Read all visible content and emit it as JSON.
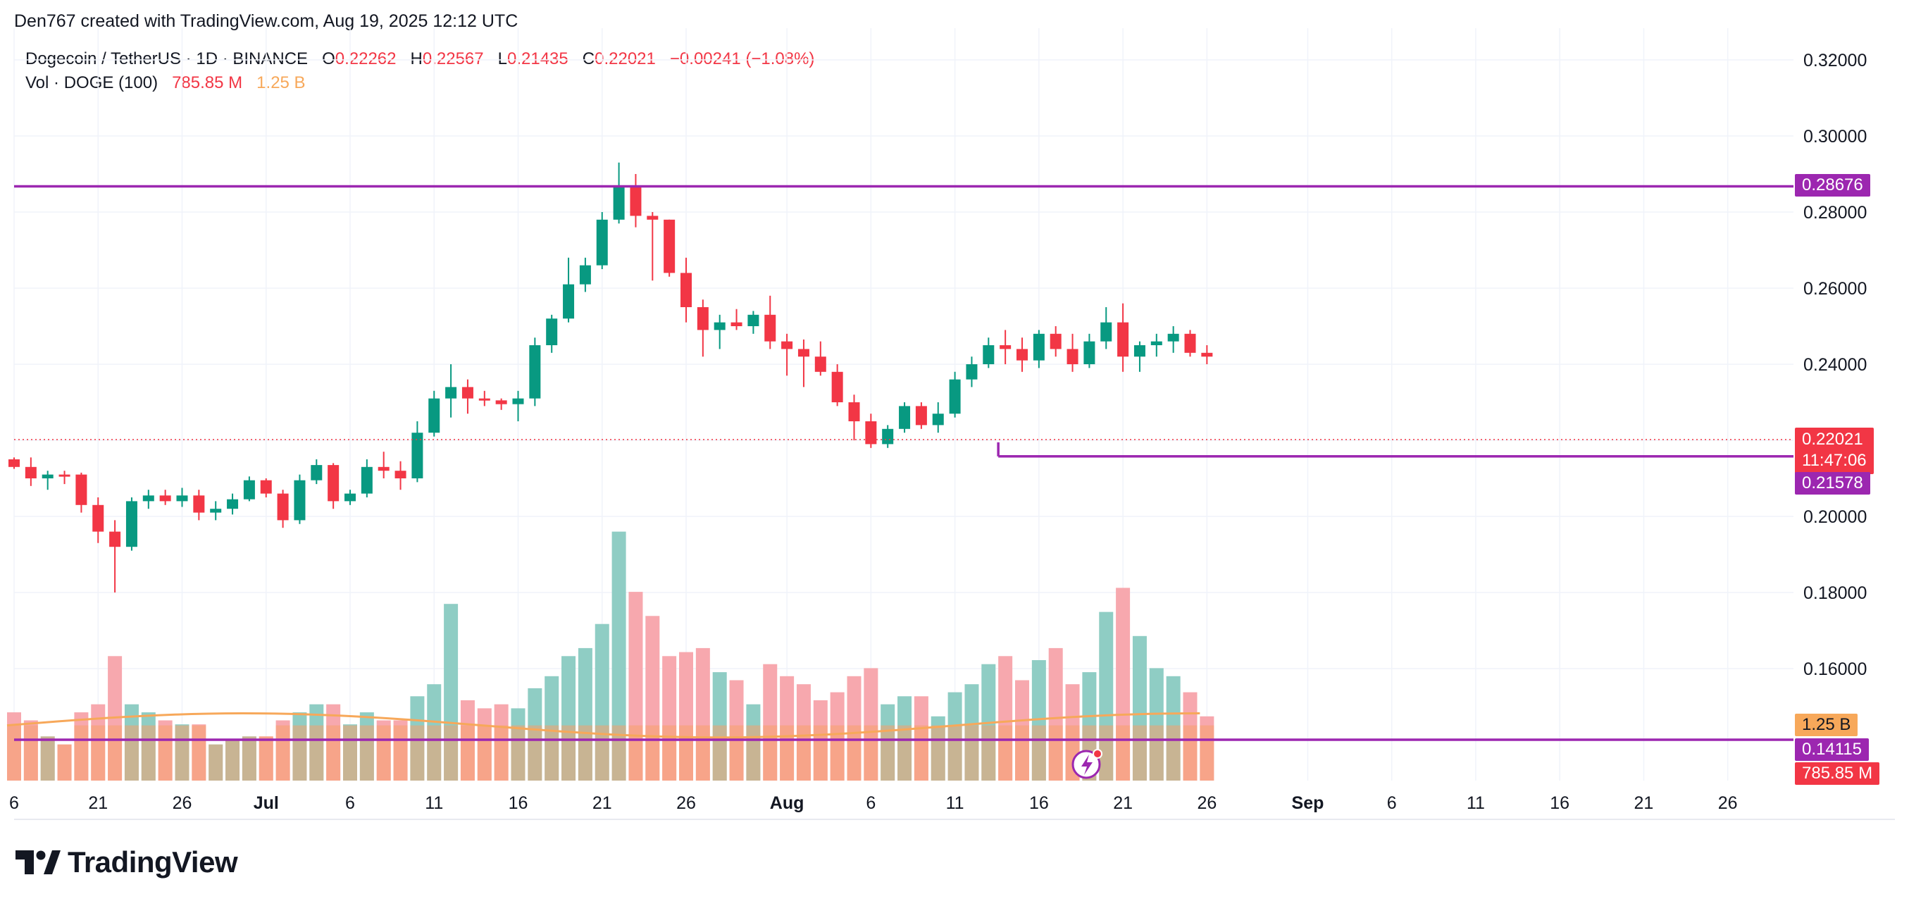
{
  "header": {
    "attribution": "Den767 created with TradingView.com, Aug 19, 2025 12:12 UTC"
  },
  "legend": {
    "symbol": "Dogecoin / TetherUS · 1D · BINANCE",
    "o_label": "O",
    "o_value": "0.22262",
    "h_label": "H",
    "h_value": "0.22567",
    "l_label": "L",
    "l_value": "0.21435",
    "c_label": "C",
    "c_value": "0.22021",
    "change": "−0.00241 (−1.08%)",
    "vol_label": "Vol · DOGE (100)",
    "vol_value": "785.85 M",
    "vol_ma_value": "1.25 B"
  },
  "brand": {
    "name": "TradingView",
    "logo_icon": "tradingview-logo-icon"
  },
  "tags": {
    "resistance": "0.28676",
    "last_price": "0.22021",
    "countdown": "11:47:06",
    "support": "0.21578",
    "vol_ma": "1.25 B",
    "low_line": "0.14115",
    "vol": "785.85 M"
  },
  "colors": {
    "up": "#089981",
    "down": "#f23645",
    "up_vol": "#8fcdc4",
    "down_vol": "#f7a8ae",
    "vol_base": "#f7a06b",
    "line": "#9c27b0",
    "vol_ma": "#f7a85a"
  },
  "chart_data": {
    "type": "candlestick",
    "title": "Dogecoin / TetherUS · 1D · BINANCE",
    "y_ticks": [
      "0.32000",
      "0.30000",
      "0.28000",
      "0.26000",
      "0.24000",
      "0.20000",
      "0.18000",
      "0.16000"
    ],
    "x_ticks": [
      {
        "label": "6",
        "day": 0
      },
      {
        "label": "21",
        "day": 5
      },
      {
        "label": "26",
        "day": 10
      },
      {
        "label": "Jul",
        "day": 15,
        "bold": true
      },
      {
        "label": "6",
        "day": 20
      },
      {
        "label": "11",
        "day": 25
      },
      {
        "label": "16",
        "day": 30
      },
      {
        "label": "21",
        "day": 35
      },
      {
        "label": "26",
        "day": 40
      },
      {
        "label": "Aug",
        "day": 46,
        "bold": true
      },
      {
        "label": "6",
        "day": 51
      },
      {
        "label": "11",
        "day": 56
      },
      {
        "label": "16",
        "day": 61
      },
      {
        "label": "21",
        "day": 66
      },
      {
        "label": "26",
        "day": 71
      },
      {
        "label": "Sep",
        "day": 77,
        "bold": true
      },
      {
        "label": "6",
        "day": 82
      },
      {
        "label": "11",
        "day": 87
      },
      {
        "label": "16",
        "day": 92
      },
      {
        "label": "21",
        "day": 97
      },
      {
        "label": "26",
        "day": 102
      }
    ],
    "horizontal_lines": [
      {
        "name": "resistance",
        "price": 0.28676
      },
      {
        "name": "support",
        "price": 0.21578,
        "from_day": 59
      },
      {
        "name": "volume-line",
        "price": 0.14115
      }
    ],
    "last_price": 0.22021,
    "candles": [
      [
        0.215,
        0.2155,
        0.2125,
        0.213,
        0.85
      ],
      [
        0.213,
        0.2155,
        0.208,
        0.21,
        0.75
      ],
      [
        0.21,
        0.212,
        0.207,
        0.211,
        0.55
      ],
      [
        0.211,
        0.212,
        0.2085,
        0.2105,
        0.45
      ],
      [
        0.211,
        0.2115,
        0.201,
        0.203,
        0.85
      ],
      [
        0.203,
        0.205,
        0.193,
        0.196,
        0.95
      ],
      [
        0.196,
        0.199,
        0.18,
        0.192,
        1.55
      ],
      [
        0.192,
        0.205,
        0.191,
        0.204,
        0.95
      ],
      [
        0.204,
        0.207,
        0.202,
        0.2055,
        0.85
      ],
      [
        0.2055,
        0.207,
        0.203,
        0.204,
        0.75
      ],
      [
        0.204,
        0.2075,
        0.2025,
        0.2055,
        0.7
      ],
      [
        0.2055,
        0.207,
        0.199,
        0.201,
        0.7
      ],
      [
        0.201,
        0.204,
        0.199,
        0.202,
        0.45
      ],
      [
        0.202,
        0.206,
        0.2005,
        0.2045,
        0.5
      ],
      [
        0.2045,
        0.2105,
        0.204,
        0.2095,
        0.55
      ],
      [
        0.2095,
        0.21,
        0.205,
        0.206,
        0.55
      ],
      [
        0.206,
        0.207,
        0.197,
        0.199,
        0.75
      ],
      [
        0.199,
        0.211,
        0.198,
        0.2095,
        0.85
      ],
      [
        0.2095,
        0.215,
        0.2085,
        0.2135,
        0.95
      ],
      [
        0.2135,
        0.214,
        0.202,
        0.204,
        0.95
      ],
      [
        0.204,
        0.207,
        0.203,
        0.206,
        0.7
      ],
      [
        0.206,
        0.215,
        0.205,
        0.213,
        0.85
      ],
      [
        0.213,
        0.217,
        0.21,
        0.212,
        0.75
      ],
      [
        0.212,
        0.2145,
        0.207,
        0.21,
        0.75
      ],
      [
        0.21,
        0.225,
        0.209,
        0.222,
        1.05
      ],
      [
        0.222,
        0.233,
        0.221,
        0.231,
        1.2
      ],
      [
        0.231,
        0.24,
        0.226,
        0.234,
        2.2
      ],
      [
        0.234,
        0.236,
        0.227,
        0.231,
        1.0
      ],
      [
        0.231,
        0.233,
        0.229,
        0.2305,
        0.9
      ],
      [
        0.2305,
        0.231,
        0.228,
        0.2295,
        0.95
      ],
      [
        0.2295,
        0.233,
        0.225,
        0.231,
        0.9
      ],
      [
        0.231,
        0.247,
        0.229,
        0.245,
        1.15
      ],
      [
        0.245,
        0.253,
        0.243,
        0.252,
        1.3
      ],
      [
        0.252,
        0.268,
        0.251,
        0.261,
        1.55
      ],
      [
        0.261,
        0.268,
        0.259,
        0.266,
        1.65
      ],
      [
        0.266,
        0.28,
        0.265,
        0.278,
        1.95
      ],
      [
        0.278,
        0.293,
        0.277,
        0.287,
        3.1
      ],
      [
        0.287,
        0.29,
        0.276,
        0.279,
        2.35
      ],
      [
        0.279,
        0.28,
        0.262,
        0.278,
        2.05
      ],
      [
        0.278,
        0.278,
        0.263,
        0.264,
        1.55
      ],
      [
        0.264,
        0.268,
        0.251,
        0.255,
        1.6
      ],
      [
        0.255,
        0.257,
        0.242,
        0.249,
        1.65
      ],
      [
        0.249,
        0.253,
        0.244,
        0.251,
        1.35
      ],
      [
        0.251,
        0.2545,
        0.249,
        0.25,
        1.25
      ],
      [
        0.25,
        0.254,
        0.248,
        0.253,
        0.95
      ],
      [
        0.253,
        0.258,
        0.244,
        0.246,
        1.45
      ],
      [
        0.246,
        0.248,
        0.237,
        0.244,
        1.3
      ],
      [
        0.244,
        0.2465,
        0.234,
        0.242,
        1.2
      ],
      [
        0.242,
        0.246,
        0.237,
        0.238,
        1.0
      ],
      [
        0.238,
        0.24,
        0.229,
        0.23,
        1.1
      ],
      [
        0.23,
        0.232,
        0.22,
        0.225,
        1.3
      ],
      [
        0.225,
        0.227,
        0.218,
        0.219,
        1.4
      ],
      [
        0.219,
        0.224,
        0.218,
        0.223,
        0.95
      ],
      [
        0.223,
        0.23,
        0.222,
        0.229,
        1.05
      ],
      [
        0.229,
        0.23,
        0.223,
        0.224,
        1.05
      ],
      [
        0.224,
        0.23,
        0.222,
        0.227,
        0.8
      ],
      [
        0.227,
        0.238,
        0.226,
        0.236,
        1.1
      ],
      [
        0.236,
        0.242,
        0.234,
        0.24,
        1.2
      ],
      [
        0.24,
        0.247,
        0.239,
        0.245,
        1.45
      ],
      [
        0.245,
        0.249,
        0.24,
        0.244,
        1.55
      ],
      [
        0.244,
        0.247,
        0.238,
        0.241,
        1.25
      ],
      [
        0.241,
        0.249,
        0.239,
        0.248,
        1.5
      ],
      [
        0.248,
        0.25,
        0.242,
        0.244,
        1.65
      ],
      [
        0.244,
        0.248,
        0.238,
        0.24,
        1.2
      ],
      [
        0.24,
        0.248,
        0.239,
        0.246,
        1.35
      ],
      [
        0.246,
        0.255,
        0.244,
        0.251,
        2.1
      ],
      [
        0.251,
        0.256,
        0.238,
        0.242,
        2.4
      ],
      [
        0.242,
        0.246,
        0.238,
        0.245,
        1.8
      ],
      [
        0.245,
        0.248,
        0.242,
        0.246,
        1.4
      ],
      [
        0.246,
        0.25,
        0.243,
        0.248,
        1.3
      ],
      [
        0.248,
        0.249,
        0.242,
        0.243,
        1.1
      ],
      [
        0.243,
        0.245,
        0.24,
        0.242,
        0.8
      ]
    ],
    "volume_ma_line": 1.25
  }
}
